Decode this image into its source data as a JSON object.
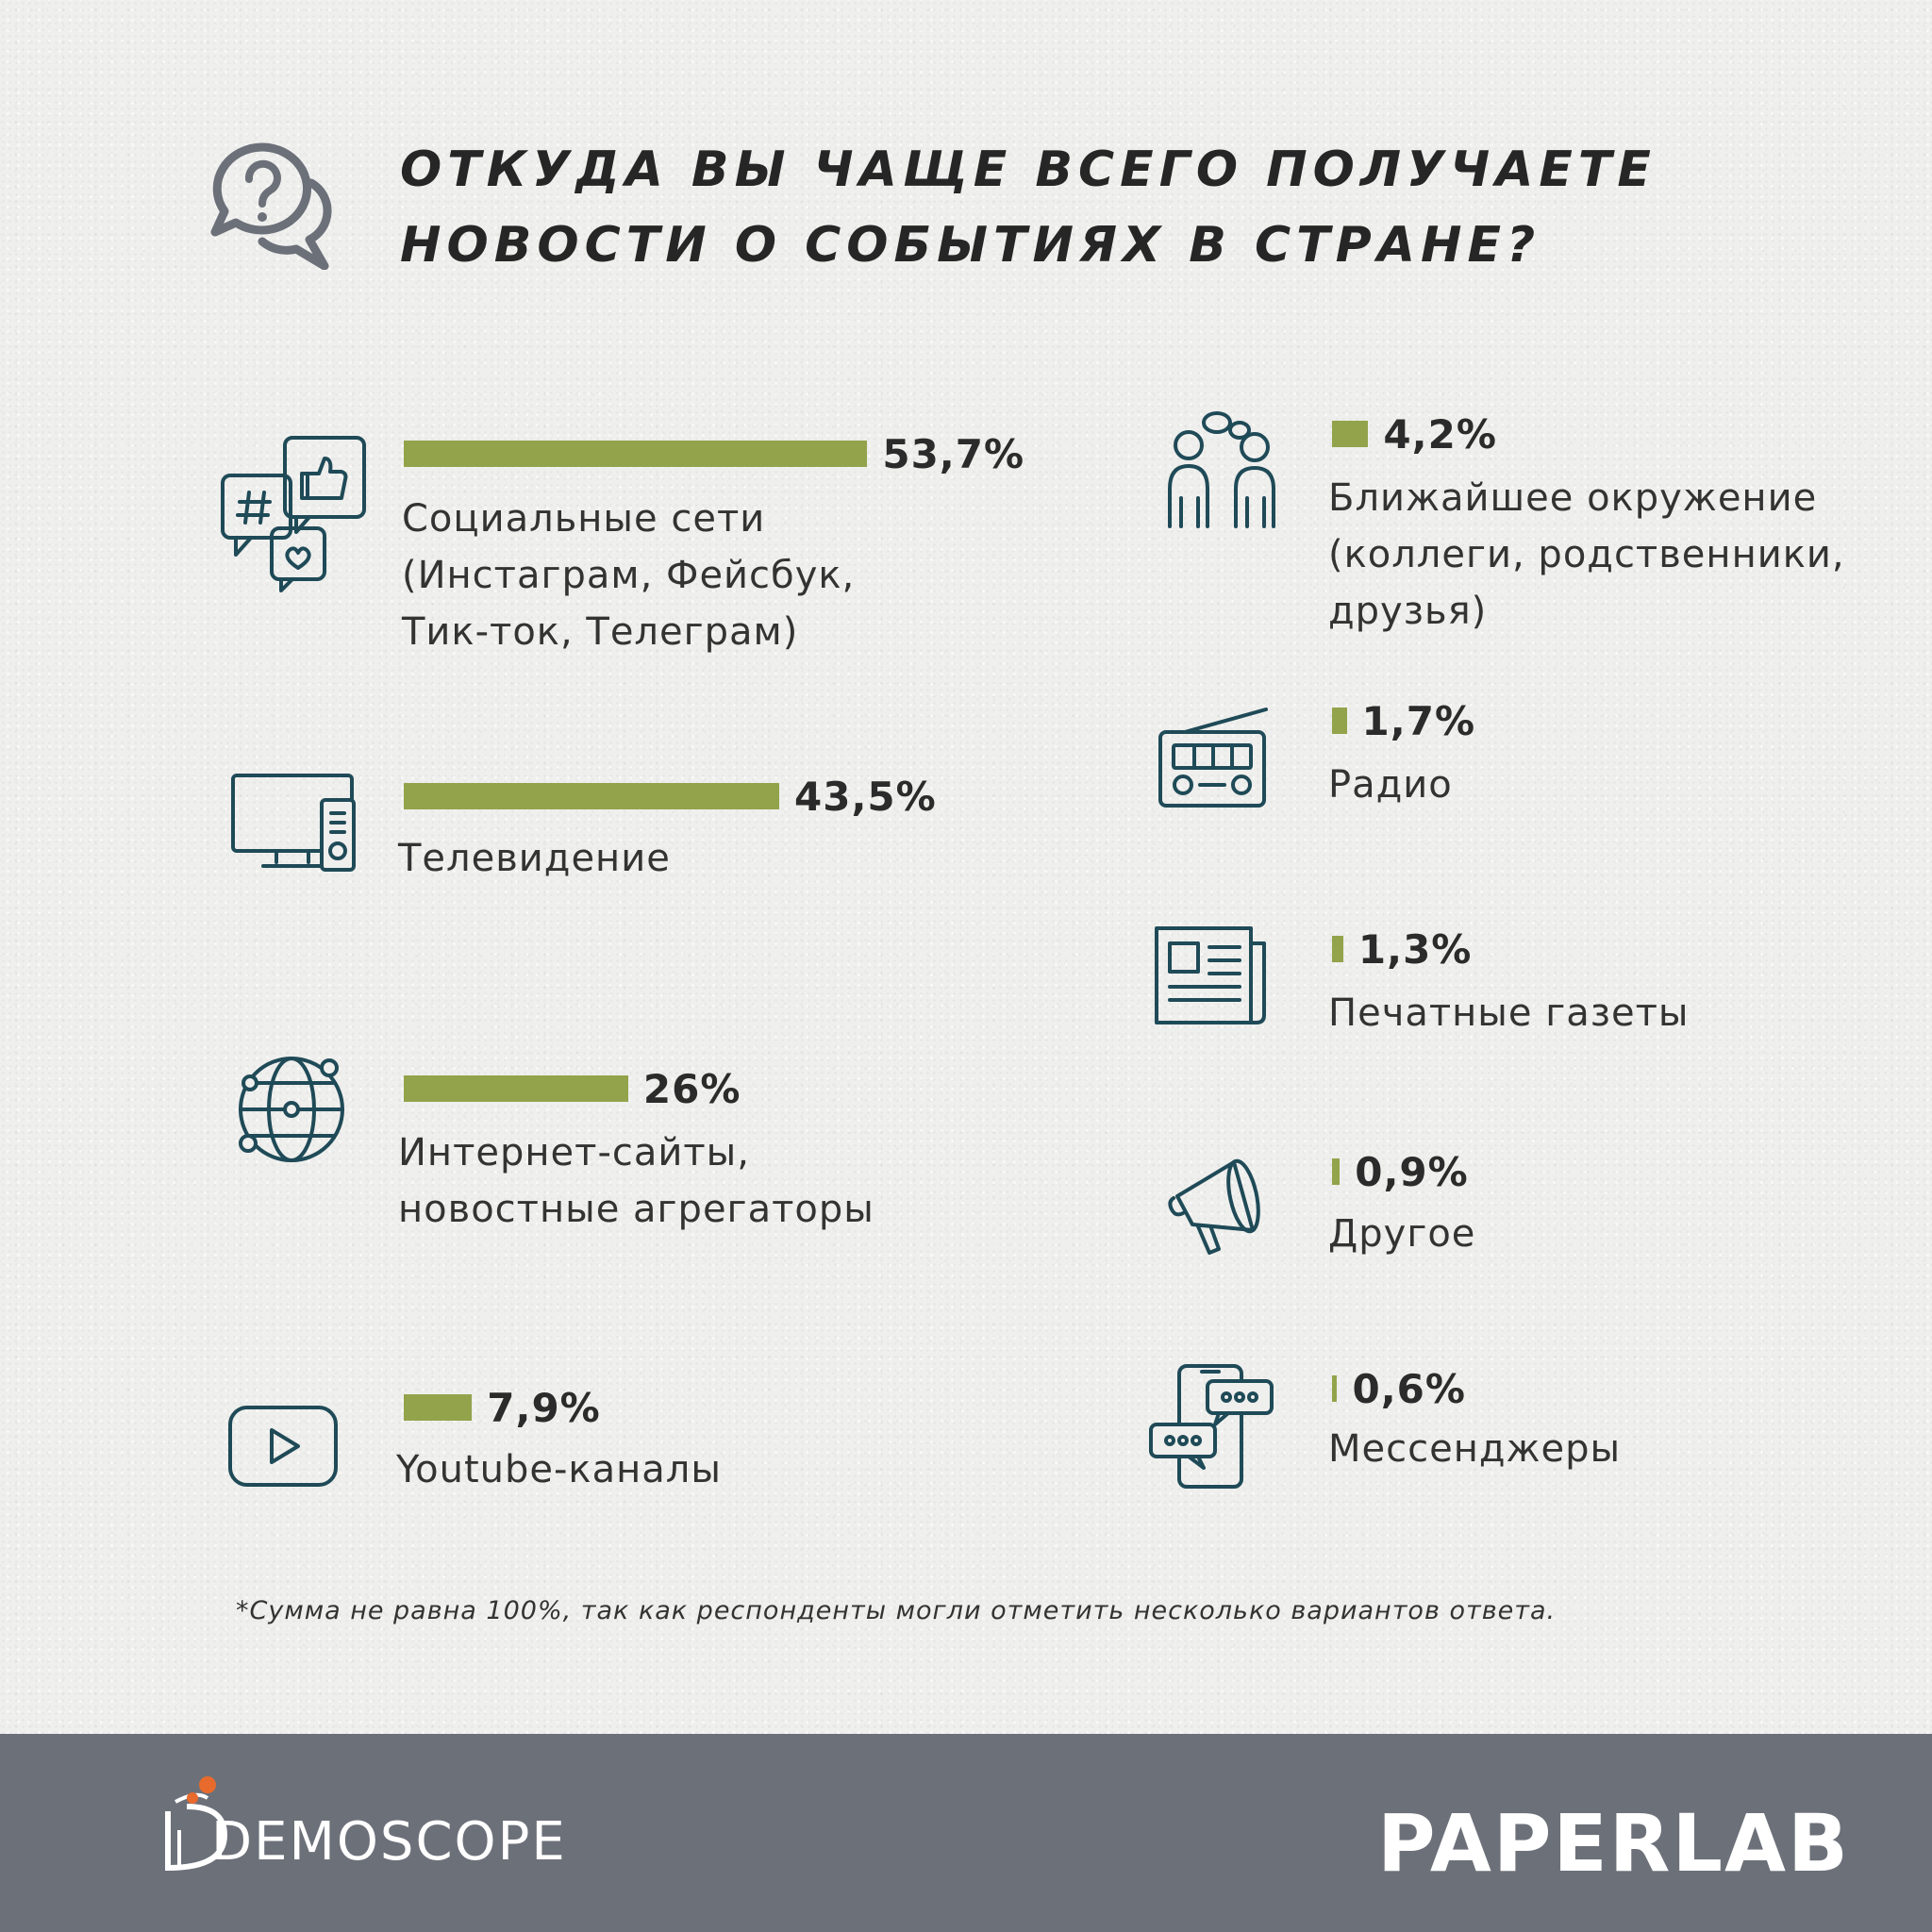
{
  "title_lines": [
    "ОТКУДА ВЫ ЧАЩЕ ВСЕГО ПОЛУЧАЕТЕ",
    "НОВОСТИ О СОБЫТИЯХ В СТРАНЕ?"
  ],
  "footnote": "*Сумма не равна 100%, так как респонденты могли отметить несколько вариантов ответа.",
  "brands": {
    "left": "DEMOSCOPE",
    "right": "PAPERLAB"
  },
  "colors": {
    "bar": "#93a34b",
    "icon": "#1f4a57",
    "footer": "#6c7079",
    "accent": "#e86a2c"
  },
  "chart_data": {
    "type": "bar",
    "orientation": "horizontal",
    "series": [
      {
        "values": [
          53.7,
          43.5,
          26,
          7.9,
          4.2,
          1.7,
          1.3,
          0.9,
          0.6
        ],
        "labels": [
          "53,7%",
          "43,5%",
          "26%",
          "7,9%",
          "4,2%",
          "1,7%",
          "1,3%",
          "0,9%",
          "0,6%"
        ]
      }
    ],
    "categories": [
      [
        "Социальные сети",
        "(Инстаграм, Фейсбук,",
        "Тик-ток, Телеграм)"
      ],
      [
        "Телевидение"
      ],
      [
        "Интернет-сайты,",
        "новостные агрегаторы"
      ],
      [
        "Youtube-каналы"
      ],
      [
        "Ближайшее окружение",
        "(коллеги, родственники,",
        "друзья)"
      ],
      [
        "Радио"
      ],
      [
        "Печатные газеты"
      ],
      [
        "Другое"
      ],
      [
        "Мессенджеры"
      ]
    ],
    "icons": [
      "social-icon",
      "tv-icon",
      "globe-icon",
      "youtube-icon",
      "people-icon",
      "radio-icon",
      "newspaper-icon",
      "megaphone-icon",
      "messenger-icon"
    ],
    "unit": "%"
  }
}
